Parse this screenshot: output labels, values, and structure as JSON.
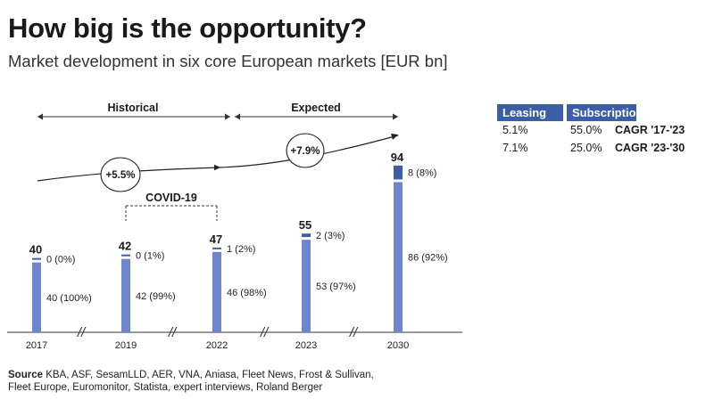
{
  "header": {
    "title": "How big is the opportunity?",
    "subtitle": "Market development in six core European markets [EUR bn]"
  },
  "chart_data": {
    "type": "bar",
    "categories": [
      "2017",
      "2019",
      "2022",
      "2023",
      "2030"
    ],
    "totals": [
      40,
      42,
      47,
      55,
      94
    ],
    "series": [
      {
        "name": "Leasing",
        "values": [
          40,
          42,
          46,
          53,
          86
        ],
        "labels": [
          "40 (100%)",
          "42 (99%)",
          "46 (98%)",
          "53 (97%)",
          "86 (92%)"
        ]
      },
      {
        "name": "Subscription",
        "values": [
          0,
          0,
          1,
          2,
          8
        ],
        "labels": [
          "0 (0%)",
          "0 (1%)",
          "1 (2%)",
          "2 (3%)",
          "8 (8%)"
        ]
      }
    ],
    "annotations": {
      "historical": "Historical",
      "expected": "Expected",
      "covid": "COVID-19",
      "cagr_1": "+5.5%",
      "cagr_2": "+7.9%"
    },
    "axis_break_symbol": "//",
    "colors": {
      "leasing": "#6e86cf",
      "subscription": "#3a5fa8"
    }
  },
  "legend_table": {
    "headers": [
      "Leasing",
      "Subscription"
    ],
    "rows": [
      {
        "leasing": "5.1%",
        "subscription": "55.0%",
        "label": "CAGR '17-'23"
      },
      {
        "leasing": "7.1%",
        "subscription": "25.0%",
        "label": "CAGR '23-'30"
      }
    ]
  },
  "source": {
    "label": "Source",
    "text": " KBA, ASF, SesamLLD, AER, VNA, Aniasa, Fleet News, Frost & Sullivan,",
    "text2": "Fleet Europe, Euromonitor, Statista, expert interviews, Roland Berger"
  }
}
